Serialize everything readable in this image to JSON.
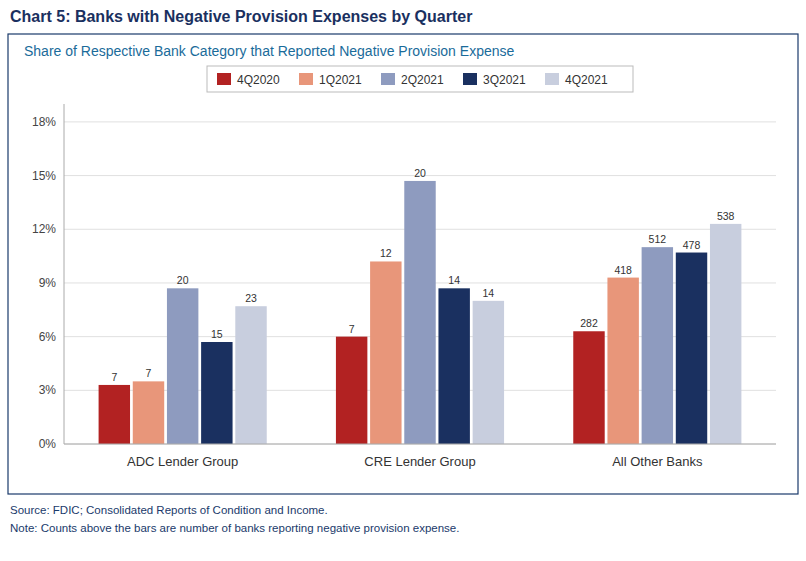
{
  "chart_data": {
    "type": "bar",
    "title": "Chart 5: Banks with Negative Provision Expenses by Quarter",
    "subtitle": "Share of Respective Bank Category that Reported Negative Provision Expense",
    "categories": [
      "ADC Lender Group",
      "CRE Lender Group",
      "All Other Banks"
    ],
    "series": [
      {
        "name": "4Q2020",
        "color": "#b22222",
        "values": [
          3.3,
          6.0,
          6.3
        ],
        "counts": [
          7,
          7,
          282
        ]
      },
      {
        "name": "1Q2021",
        "color": "#e8967a",
        "values": [
          3.5,
          10.2,
          9.3
        ],
        "counts": [
          7,
          12,
          418
        ]
      },
      {
        "name": "2Q2021",
        "color": "#8e9bbf",
        "values": [
          8.7,
          14.7,
          11.0
        ],
        "counts": [
          20,
          20,
          512
        ]
      },
      {
        "name": "3Q2021",
        "color": "#1a3060",
        "values": [
          5.7,
          8.7,
          10.7
        ],
        "counts": [
          15,
          14,
          478
        ]
      },
      {
        "name": "4Q2021",
        "color": "#c8cede",
        "values": [
          7.7,
          8.0,
          12.3
        ],
        "counts": [
          23,
          14,
          538
        ]
      }
    ],
    "ylim": [
      0,
      19
    ],
    "yticks": [
      {
        "value": 0,
        "label": "0%"
      },
      {
        "value": 3,
        "label": "3%"
      },
      {
        "value": 6,
        "label": "6%"
      },
      {
        "value": 9,
        "label": "9%"
      },
      {
        "value": 12,
        "label": "12%"
      },
      {
        "value": 15,
        "label": "15%"
      },
      {
        "value": 18,
        "label": "18%"
      }
    ],
    "grid": true,
    "legend": "top",
    "notes": [
      "Source: FDIC; Consolidated Reports of Condition and Income.",
      "Note: Counts above the bars are number of banks reporting negative provision expense."
    ]
  }
}
